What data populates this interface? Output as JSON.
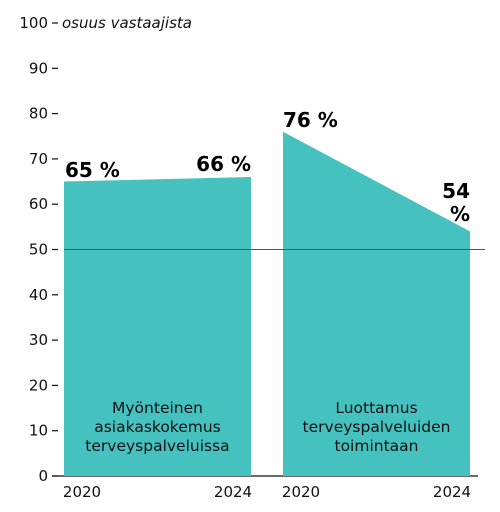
{
  "chart_data": {
    "type": "area",
    "y_unit_label": "osuus vastaajista",
    "ylim": [
      0,
      100
    ],
    "y_ticks": [
      "0",
      "10",
      "20",
      "30",
      "40",
      "50",
      "60",
      "70",
      "80",
      "90",
      "100"
    ],
    "reference_line": 50,
    "colors": {
      "area": "#45c1bf",
      "reference_line": "#555555",
      "text": "#111111"
    },
    "panels": [
      {
        "name": "Myönteinen\nasiakaskokemus\nterveyspalveluissa",
        "x": [
          "2020",
          "2024"
        ],
        "values": [
          65,
          66
        ],
        "value_labels": [
          "65 %",
          "66 %"
        ]
      },
      {
        "name": "Luottamus\nterveyspalveluiden\ntoimintaan",
        "x": [
          "2020",
          "2024"
        ],
        "values": [
          76,
          54
        ],
        "value_labels": [
          "76 %",
          "54\n%"
        ]
      }
    ]
  }
}
